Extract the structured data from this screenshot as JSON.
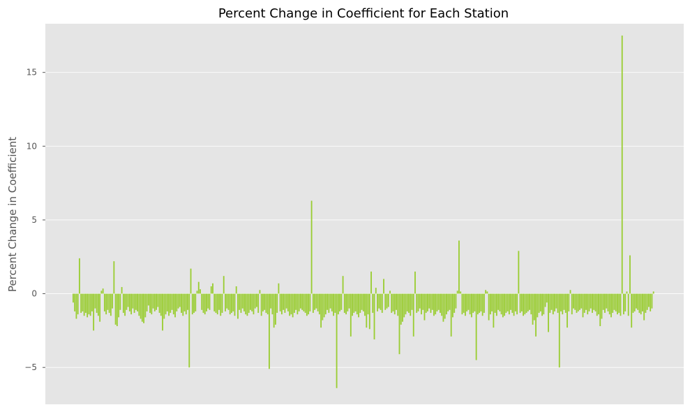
{
  "chart_data": {
    "type": "bar",
    "title": "Percent Change in Coefficient for Each Station",
    "xlabel": "",
    "ylabel": "Percent Change in Coefficient",
    "ylim": [
      -7.5,
      18.3
    ],
    "yticks": [
      {
        "value": -5,
        "label": "−5"
      },
      {
        "value": 0,
        "label": "0"
      },
      {
        "value": 5,
        "label": "5"
      },
      {
        "value": 10,
        "label": "10"
      },
      {
        "value": 15,
        "label": "15"
      }
    ],
    "grid": true,
    "legend": "none",
    "bar_color": "#9acd32",
    "background_color": "#e5e5e5",
    "grid_color": "#ffffff",
    "values": [
      -0.6,
      -1.2,
      -1.7,
      -1.4,
      2.4,
      -1.3,
      -1.2,
      -1.5,
      -1.3,
      -1.6,
      -1.4,
      -1.5,
      -1.2,
      -2.5,
      -1.0,
      -1.3,
      -1.5,
      -1.9,
      0.2,
      0.35,
      -1.2,
      -1.4,
      -1.1,
      -1.3,
      -1.5,
      -1.0,
      2.2,
      -2.1,
      -2.2,
      -1.6,
      -1.1,
      0.45,
      -1.3,
      -1.5,
      -1.1,
      -0.9,
      -1.2,
      -1.4,
      -1.0,
      -1.3,
      -1.1,
      -1.2,
      -1.5,
      -1.7,
      -1.9,
      -2.0,
      -1.6,
      -1.2,
      -0.8,
      -1.3,
      -1.4,
      -1.0,
      -1.2,
      -1.1,
      -0.9,
      -1.3,
      -1.5,
      -2.5,
      -1.7,
      -1.4,
      -1.2,
      -1.5,
      -1.3,
      -1.1,
      -1.4,
      -1.6,
      -1.2,
      -1.0,
      -0.9,
      -1.3,
      -1.5,
      -1.2,
      -1.4,
      -1.1,
      -5.0,
      1.7,
      -1.4,
      -1.3,
      -1.2,
      0.2,
      0.8,
      0.3,
      -1.1,
      -1.3,
      -1.4,
      -1.2,
      -1.0,
      -1.1,
      0.5,
      0.7,
      -1.2,
      -1.3,
      -1.4,
      -1.1,
      -1.5,
      -1.3,
      1.2,
      -1.2,
      -1.0,
      -1.1,
      -1.4,
      -1.3,
      -1.2,
      -1.5,
      0.5,
      -1.7,
      -1.1,
      -1.3,
      -1.0,
      -1.2,
      -1.4,
      -1.5,
      -1.3,
      -1.1,
      -1.2,
      -1.4,
      -1.0,
      -0.9,
      -1.3,
      0.25,
      -1.5,
      -1.2,
      -1.1,
      -1.3,
      -1.4,
      -5.1,
      -1.0,
      -1.4,
      -2.3,
      -2.1,
      -1.3,
      0.7,
      -1.2,
      -1.4,
      -1.1,
      -1.3,
      -1.0,
      -1.2,
      -1.5,
      -1.4,
      -1.6,
      -1.3,
      -1.1,
      -1.4,
      -1.2,
      -1.0,
      -1.1,
      -1.2,
      -1.3,
      -1.5,
      -1.4,
      -1.2,
      6.3,
      -1.3,
      -1.1,
      -1.0,
      -1.2,
      -1.4,
      -2.3,
      -1.8,
      -1.6,
      -1.4,
      -1.1,
      -1.3,
      -1.0,
      -1.2,
      -1.5,
      -1.3,
      -6.4,
      -1.4,
      -1.2,
      -1.1,
      1.2,
      -1.3,
      -1.4,
      -1.2,
      -1.0,
      -2.9,
      -1.5,
      -1.3,
      -1.2,
      -1.4,
      -1.6,
      -1.3,
      -1.1,
      -1.2,
      -1.5,
      -2.3,
      -1.4,
      -2.4,
      1.5,
      -1.3,
      -3.1,
      0.4,
      -1.2,
      -1.0,
      -1.1,
      -1.3,
      1.0,
      -1.1,
      -1.0,
      -0.9,
      0.2,
      -1.3,
      -1.2,
      -1.4,
      -1.1,
      -1.5,
      -4.1,
      -2.1,
      -1.9,
      -1.6,
      -1.4,
      -1.2,
      -1.3,
      -1.5,
      -1.1,
      -2.9,
      1.5,
      -1.3,
      -1.2,
      -1.0,
      -1.4,
      -1.1,
      -1.8,
      -1.3,
      -1.2,
      -1.0,
      -1.3,
      -1.1,
      -1.5,
      -1.4,
      -1.2,
      -1.1,
      -1.3,
      -1.5,
      -1.9,
      -1.7,
      -1.4,
      -1.2,
      -1.1,
      -2.9,
      -1.6,
      -1.3,
      -1.0,
      0.2,
      3.6,
      0.15,
      -1.4,
      -1.3,
      -1.5,
      -1.2,
      -1.1,
      -1.4,
      -1.6,
      -1.3,
      -1.2,
      -4.5,
      -1.4,
      -1.3,
      -1.2,
      -1.5,
      -1.3,
      0.25,
      0.15,
      -1.8,
      -1.4,
      -1.2,
      -2.3,
      -1.3,
      -1.5,
      -1.1,
      -1.2,
      -1.4,
      -1.6,
      -1.5,
      -1.3,
      -1.2,
      -1.4,
      -1.1,
      -1.3,
      -1.5,
      -1.2,
      -1.4,
      2.9,
      -1.3,
      -1.2,
      -1.5,
      -1.4,
      -1.3,
      -1.2,
      -1.1,
      -1.4,
      -2.1,
      -1.8,
      -2.9,
      -1.6,
      -1.3,
      -1.2,
      -1.5,
      -1.4,
      -0.9,
      -0.6,
      -2.6,
      -1.3,
      -1.1,
      -1.4,
      -1.2,
      -1.0,
      -1.3,
      -5.0,
      -1.2,
      -1.4,
      -1.1,
      -1.3,
      -2.3,
      -1.2,
      0.25,
      -1.4,
      -1.0,
      -1.1,
      -1.3,
      -1.2,
      -1.1,
      -1.0,
      -1.6,
      -1.3,
      -1.1,
      -1.4,
      -1.2,
      -1.0,
      -1.3,
      -1.1,
      -1.2,
      -1.5,
      -1.4,
      -2.2,
      -1.7,
      -1.1,
      -1.3,
      -1.0,
      -1.2,
      -1.4,
      -1.6,
      -1.3,
      -1.1,
      -1.2,
      -1.4,
      -1.3,
      -1.5,
      17.5,
      -1.4,
      -1.2,
      0.15,
      -1.5,
      2.6,
      -2.3,
      -1.3,
      -1.2,
      -1.0,
      -1.1,
      -1.3,
      -1.4,
      -1.2,
      -1.8,
      -1.3,
      -1.1,
      -0.9,
      -1.2,
      -1.0,
      0.15
    ]
  }
}
